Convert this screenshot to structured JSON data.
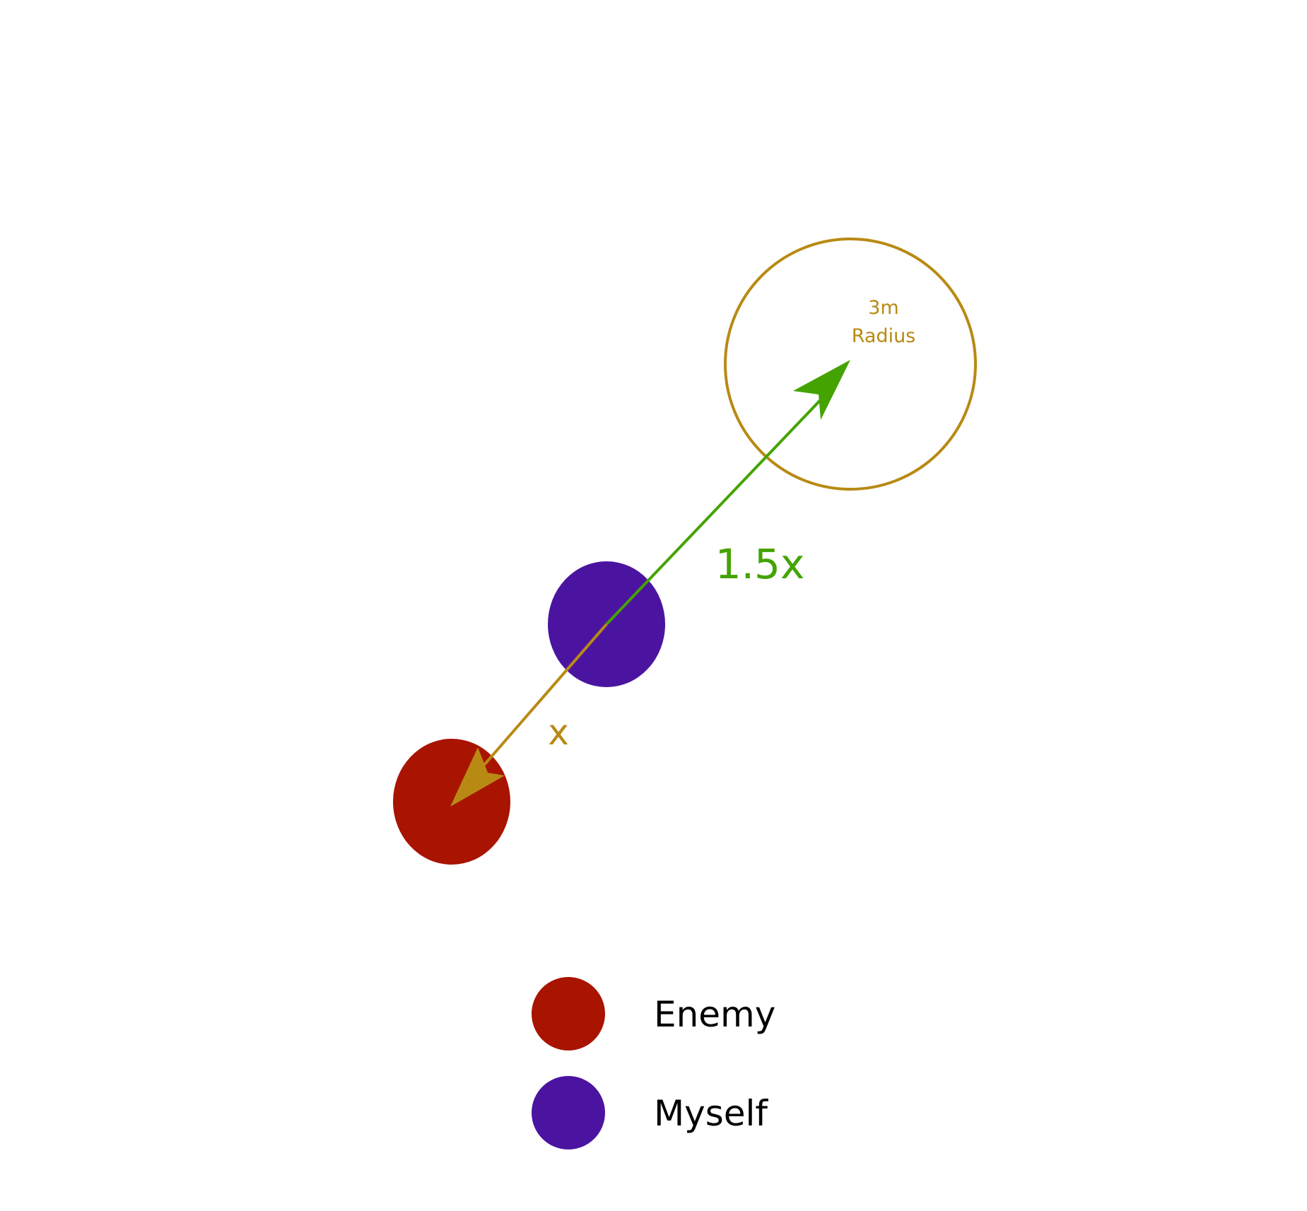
{
  "colors": {
    "enemy": "#a81400",
    "myself": "#4b14a0",
    "radius_ring": "#b88a14",
    "distance_arrow": "#b88a14",
    "jump_arrow": "#44a300",
    "legend_text": "#000000"
  },
  "radius_label": {
    "line1": "3m",
    "line2": "Radius"
  },
  "enemy_distance_label": "x",
  "jump_distance_label": "1.5x",
  "legend": {
    "items": [
      {
        "key": "enemy",
        "label": "Enemy"
      },
      {
        "key": "myself",
        "label": "Myself"
      }
    ]
  }
}
